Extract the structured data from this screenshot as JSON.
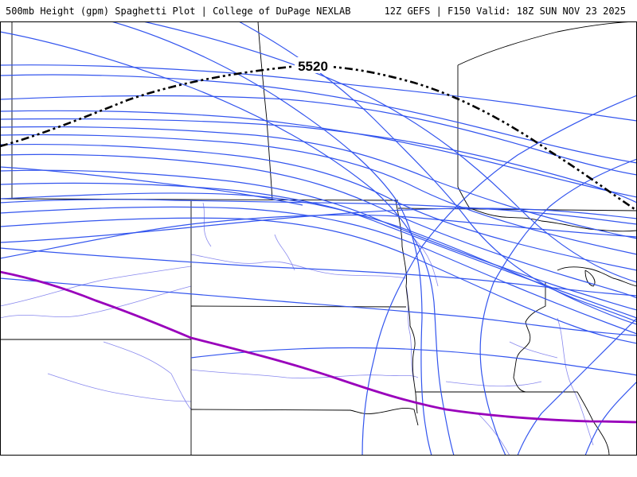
{
  "header": {
    "left_title": "500mb Height (gpm) Spaghetti Plot | College of DuPage NEXLAB",
    "right_title": "12Z GEFS | F150 Valid: 18Z SUN NOV 23 2025"
  },
  "map": {
    "contour_label": "5520",
    "colors": {
      "member_contour": "#3355ee",
      "highlight_contour": "#9900bb",
      "mean_contour": "#000000",
      "state_border": "#000000",
      "river": "#8888ee",
      "background": "#ffffff"
    }
  }
}
